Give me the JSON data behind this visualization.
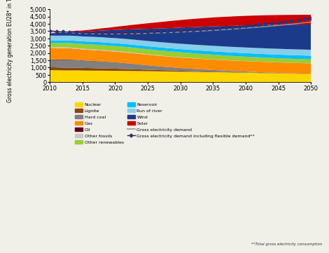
{
  "years": [
    2010,
    2011,
    2012,
    2013,
    2014,
    2015,
    2016,
    2017,
    2018,
    2019,
    2020,
    2021,
    2022,
    2023,
    2024,
    2025,
    2026,
    2027,
    2028,
    2029,
    2030,
    2031,
    2032,
    2033,
    2034,
    2035,
    2036,
    2037,
    2038,
    2039,
    2040,
    2041,
    2042,
    2043,
    2044,
    2045,
    2046,
    2047,
    2048,
    2049,
    2050
  ],
  "ylabel": "Gross electricity generation EU28* in TWh",
  "ylim": [
    0,
    5000
  ],
  "yticks": [
    0,
    500,
    1000,
    1500,
    2000,
    2500,
    3000,
    3500,
    4000,
    4500,
    5000
  ],
  "xlim": [
    2010,
    2050
  ],
  "xticks": [
    2010,
    2015,
    2020,
    2025,
    2030,
    2035,
    2040,
    2045,
    2050
  ],
  "note": "**Total gross electricity consumption",
  "stacks": {
    "Nuclear": [
      830,
      820,
      810,
      805,
      810,
      800,
      795,
      790,
      790,
      785,
      780,
      775,
      770,
      765,
      760,
      755,
      748,
      740,
      735,
      728,
      720,
      715,
      708,
      700,
      694,
      688,
      680,
      672,
      664,
      656,
      648,
      638,
      628,
      618,
      608,
      598,
      588,
      578,
      568,
      558,
      548
    ],
    "Lignite": [
      200,
      195,
      190,
      188,
      185,
      182,
      175,
      168,
      160,
      152,
      145,
      136,
      128,
      120,
      110,
      100,
      92,
      85,
      78,
      70,
      63,
      57,
      51,
      46,
      41,
      36,
      32,
      28,
      25,
      22,
      18,
      16,
      14,
      12,
      10,
      8,
      7,
      6,
      5,
      4,
      3
    ],
    "Hard coal": [
      500,
      510,
      520,
      530,
      510,
      490,
      480,
      470,
      455,
      435,
      420,
      400,
      375,
      348,
      320,
      292,
      268,
      244,
      222,
      202,
      183,
      166,
      150,
      135,
      121,
      108,
      96,
      85,
      75,
      66,
      58,
      51,
      44,
      38,
      33,
      28,
      24,
      21,
      18,
      15,
      13
    ],
    "Oil": [
      30,
      28,
      27,
      26,
      24,
      23,
      21,
      20,
      18,
      16,
      15,
      13,
      12,
      11,
      10,
      9,
      8,
      8,
      7,
      7,
      6,
      6,
      5,
      5,
      4,
      4,
      4,
      3,
      3,
      3,
      3,
      3,
      2,
      2,
      2,
      2,
      2,
      2,
      2,
      2,
      2
    ],
    "Gas": [
      800,
      790,
      785,
      775,
      760,
      750,
      748,
      745,
      742,
      740,
      738,
      735,
      733,
      732,
      730,
      728,
      726,
      724,
      722,
      721,
      720,
      720,
      720,
      719,
      719,
      718,
      718,
      718,
      718,
      718,
      718,
      718,
      718,
      719,
      719,
      720,
      720,
      721,
      721,
      722,
      723
    ],
    "Other fossils": [
      60,
      58,
      57,
      56,
      54,
      52,
      50,
      48,
      46,
      44,
      42,
      40,
      38,
      35,
      33,
      30,
      28,
      26,
      24,
      22,
      20,
      19,
      17,
      16,
      14,
      13,
      12,
      11,
      10,
      9,
      8,
      8,
      7,
      7,
      6,
      6,
      6,
      5,
      5,
      5,
      5
    ],
    "Other renewables": [
      280,
      290,
      298,
      305,
      315,
      325,
      330,
      335,
      338,
      340,
      342,
      344,
      345,
      346,
      346,
      346,
      345,
      344,
      342,
      340,
      338,
      335,
      331,
      328,
      324,
      320,
      315,
      310,
      306,
      302,
      298,
      294,
      290,
      287,
      284,
      280,
      277,
      275,
      272,
      270,
      268
    ],
    "Reservoir": [
      170,
      172,
      174,
      175,
      178,
      180,
      182,
      185,
      188,
      190,
      193,
      195,
      198,
      200,
      203,
      206,
      208,
      211,
      213,
      216,
      218,
      220,
      222,
      225,
      227,
      230,
      232,
      234,
      236,
      238,
      240,
      241,
      243,
      245,
      246,
      248,
      249,
      250,
      251,
      253,
      254
    ],
    "Run of river": [
      330,
      332,
      334,
      336,
      338,
      340,
      342,
      344,
      346,
      348,
      350,
      352,
      354,
      356,
      358,
      360,
      362,
      364,
      366,
      368,
      370,
      372,
      374,
      376,
      378,
      380,
      382,
      384,
      386,
      388,
      390,
      392,
      394,
      396,
      398,
      400,
      402,
      404,
      406,
      408,
      410
    ],
    "Wind": [
      140,
      175,
      210,
      248,
      283,
      318,
      365,
      412,
      462,
      512,
      562,
      615,
      668,
      722,
      778,
      835,
      890,
      944,
      998,
      1052,
      1106,
      1155,
      1202,
      1248,
      1292,
      1335,
      1375,
      1413,
      1449,
      1483,
      1515,
      1545,
      1573,
      1598,
      1622,
      1644,
      1665,
      1683,
      1700,
      1716,
      1730
    ],
    "Solar": [
      20,
      28,
      38,
      50,
      65,
      82,
      102,
      125,
      150,
      178,
      208,
      240,
      275,
      310,
      345,
      380,
      410,
      440,
      468,
      494,
      518,
      540,
      560,
      578,
      594,
      608,
      620,
      631,
      640,
      648,
      655,
      661,
      665,
      669,
      671,
      672,
      673,
      673,
      672,
      671,
      670
    ]
  },
  "colors": {
    "Nuclear": "#FFD700",
    "Lignite": "#8B4513",
    "Hard coal": "#808080",
    "Oil": "#5C0020",
    "Gas": "#FF8C00",
    "Other fossils": "#C8C8C8",
    "Other renewables": "#9ACD32",
    "Reservoir": "#00BFFF",
    "Run of river": "#87CEEB",
    "Wind": "#1C3A8A",
    "Solar": "#CC0000"
  },
  "stack_order": [
    "Nuclear",
    "Lignite",
    "Hard coal",
    "Oil",
    "Gas",
    "Other fossils",
    "Other renewables",
    "Reservoir",
    "Run of river",
    "Wind",
    "Solar"
  ],
  "gross_demand": [
    3460,
    3440,
    3420,
    3400,
    3370,
    3340,
    3330,
    3320,
    3315,
    3310,
    3310,
    3315,
    3320,
    3330,
    3340,
    3355,
    3370,
    3385,
    3400,
    3420,
    3440,
    3460,
    3480,
    3505,
    3530,
    3555,
    3585,
    3615,
    3645,
    3678,
    3710,
    3745,
    3780,
    3815,
    3855,
    3895,
    3940,
    3985,
    4030,
    4080,
    4130
  ],
  "gross_demand_flex": [
    3530,
    3490,
    3460,
    3445,
    3420,
    3400,
    3395,
    3390,
    3388,
    3385,
    3385,
    3392,
    3400,
    3412,
    3425,
    3440,
    3458,
    3476,
    3495,
    3516,
    3537,
    3562,
    3588,
    3616,
    3645,
    3675,
    3710,
    3746,
    3783,
    3821,
    3862,
    3905,
    3950,
    3996,
    4044,
    4094,
    4148,
    4203,
    4258,
    4318,
    4380
  ],
  "line_colors": {
    "gross_demand": "#999999",
    "gross_demand_flex": "#8B0000"
  },
  "background_color": "#F0EFE8"
}
